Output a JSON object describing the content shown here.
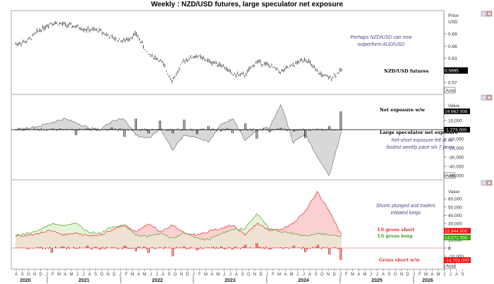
{
  "title": "Weekly : NZD/USD futures, large speculator net exposure",
  "panes": {
    "price": {
      "header": [
        "Price",
        "USD"
      ],
      "ticks": [
        {
          "label": "0.69",
          "v": 0.69
        },
        {
          "label": "0.66",
          "v": 0.66
        },
        {
          "label": "0.63",
          "v": 0.63
        },
        {
          "label": "0.57",
          "v": 0.57
        }
      ],
      "last_value": "0.5995",
      "series_label": "NZD/USD futures",
      "annotation": [
        "Perhaps NZD/USD can now",
        "outperform AUD/USD"
      ],
      "auto_label": "Auto"
    },
    "net": {
      "header": "Value",
      "ticks": [
        {
          "label": "10,000",
          "v": 10000
        },
        {
          "label": "-10,000",
          "v": -10000
        },
        {
          "label": "-20,000",
          "v": -20000
        },
        {
          "label": "-30,000",
          "v": -30000
        },
        {
          "label": "-40,000",
          "v": -40000
        },
        {
          "label": "-50,000",
          "v": -50000
        }
      ],
      "top_value": "19,962.000",
      "last_value": "-1,273.000",
      "series_labels": [
        "Net exposure w/w",
        "Large speculator net exposure"
      ],
      "annotation": [
        "Net-short exposure fell at its",
        "fastest weekly pace sin 7 years"
      ],
      "auto_label": "Auto"
    },
    "gross": {
      "header": "Value",
      "ticks": [
        {
          "label": "60,000",
          "v": 60000
        },
        {
          "label": "50,000",
          "v": 50000
        },
        {
          "label": "40,000",
          "v": 40000
        },
        {
          "label": "30,000",
          "v": 30000
        },
        {
          "label": "10,000",
          "v": 10000
        },
        {
          "label": "0",
          "v": 0
        },
        {
          "label": "-10,000",
          "v": -10000
        }
      ],
      "short_value": "15,844.000",
      "long_value": "14,571.000",
      "ww_value": "-14,703.000",
      "series_labels": [
        "LS gross short",
        "LS gross long",
        "Gross short w/w"
      ],
      "annotation": [
        "Shorts plunged and traders",
        "initiated longs"
      ],
      "auto_label": "Auto"
    }
  },
  "x_axis": {
    "months": [
      "A",
      "S",
      "O",
      "N",
      "D",
      "J",
      "F",
      "M",
      "A",
      "M",
      "J",
      "J",
      "A",
      "S",
      "O",
      "N",
      "D",
      "J",
      "F",
      "M",
      "A",
      "M",
      "J",
      "J",
      "A",
      "S",
      "O",
      "N",
      "D",
      "J",
      "F",
      "M",
      "A",
      "M",
      "J",
      "J",
      "A",
      "S",
      "O",
      "N",
      "D",
      "J",
      "F",
      "M",
      "A",
      "M",
      "J",
      "J",
      "A",
      "S",
      "O",
      "N",
      "D",
      "J",
      "F",
      "M",
      "A",
      "M",
      "J",
      "J",
      "A",
      "S",
      "O",
      "N",
      "D",
      "J",
      "F",
      "M",
      "A",
      "M",
      "J",
      "J",
      "A",
      "S"
    ],
    "years": [
      "2020",
      "2021",
      "2022",
      "2023",
      "2024",
      "2025",
      "2026"
    ]
  },
  "colors": {
    "price_bar": "#333333",
    "net_fill": "#d8d8d8",
    "net_line": "#777777",
    "short_line": "#e8474a",
    "short_fill": "#f9c4c4",
    "long_line": "#6aab3c",
    "long_fill": "#dff0cf",
    "common_fill": "#efe2d2",
    "ww_bar": "#cc0000",
    "tag_red": "#ff0000",
    "tag_green": "#33aa00",
    "note": "#4a4a8c"
  },
  "chart_data": [
    {
      "type": "line",
      "title": "NZD/USD futures (weekly OHLC)",
      "ylabel": "Price USD",
      "ylim": [
        0.55,
        0.72
      ],
      "x": [
        "2020-08",
        "2020-10",
        "2020-12",
        "2021-02",
        "2021-04",
        "2021-06",
        "2021-08",
        "2021-10",
        "2021-12",
        "2022-02",
        "2022-04",
        "2022-06",
        "2022-08",
        "2022-10",
        "2022-12",
        "2023-02",
        "2023-04",
        "2023-06",
        "2023-08",
        "2023-10",
        "2023-12",
        "2024-02",
        "2024-04",
        "2024-06",
        "2024-08",
        "2024-10",
        "2024-12",
        "2025-01"
      ],
      "series": [
        {
          "name": "NZD/USD futures",
          "values": [
            0.665,
            0.672,
            0.7,
            0.718,
            0.713,
            0.708,
            0.7,
            0.698,
            0.68,
            0.672,
            0.69,
            0.64,
            0.625,
            0.575,
            0.625,
            0.636,
            0.622,
            0.615,
            0.59,
            0.588,
            0.622,
            0.612,
            0.596,
            0.612,
            0.63,
            0.595,
            0.58,
            0.5995
          ]
        }
      ],
      "last_value": 0.5995
    },
    {
      "type": "area",
      "title": "Large speculator net exposure",
      "ylabel": "Value",
      "ylim": [
        -58000,
        25000
      ],
      "x": [
        "2020-08",
        "2020-10",
        "2020-12",
        "2021-02",
        "2021-04",
        "2021-06",
        "2021-08",
        "2021-10",
        "2021-12",
        "2022-02",
        "2022-04",
        "2022-06",
        "2022-08",
        "2022-10",
        "2022-12",
        "2023-02",
        "2023-04",
        "2023-06",
        "2023-08",
        "2023-10",
        "2023-12",
        "2024-02",
        "2024-04",
        "2024-06",
        "2024-08",
        "2024-10",
        "2024-12",
        "2025-01"
      ],
      "series": [
        {
          "name": "Large speculator net exposure",
          "values": [
            0,
            2000,
            4000,
            8000,
            12000,
            8000,
            2000,
            0,
            10000,
            12000,
            -6000,
            -10000,
            1000,
            -22000,
            -6000,
            -8000,
            -14000,
            6000,
            12000,
            -12000,
            0,
            2000,
            28000,
            -14000,
            -5000,
            -30000,
            -50000,
            -1273
          ]
        },
        {
          "name": "Net exposure w/w",
          "values": [
            500,
            800,
            -1000,
            1200,
            -600,
            -6000,
            1500,
            -400,
            2500,
            -8000,
            12000,
            -4000,
            10000,
            -4000,
            11000,
            -5000,
            4000,
            -2000,
            -4000,
            7000,
            -10000,
            -3000,
            2000,
            -2000,
            -9000,
            1000,
            4000,
            19962
          ]
        }
      ],
      "last_values": {
        "net": -1273,
        "ww": 19962
      }
    },
    {
      "type": "area",
      "title": "LS gross short / long",
      "ylabel": "Value",
      "ylim": [
        -15000,
        68000
      ],
      "x": [
        "2020-08",
        "2020-10",
        "2020-12",
        "2021-02",
        "2021-04",
        "2021-06",
        "2021-08",
        "2021-10",
        "2021-12",
        "2022-02",
        "2022-04",
        "2022-06",
        "2022-08",
        "2022-10",
        "2022-12",
        "2023-02",
        "2023-04",
        "2023-06",
        "2023-08",
        "2023-10",
        "2023-12",
        "2024-02",
        "2024-04",
        "2024-06",
        "2024-08",
        "2024-10",
        "2024-12",
        "2025-01"
      ],
      "series": [
        {
          "name": "LS gross short",
          "values": [
            14000,
            16000,
            18000,
            22000,
            16000,
            18000,
            15000,
            16000,
            22000,
            28000,
            20000,
            30000,
            20000,
            28000,
            18000,
            16000,
            20000,
            24000,
            28000,
            16000,
            30000,
            22000,
            22000,
            30000,
            45000,
            68000,
            45000,
            15844
          ]
        },
        {
          "name": "LS gross long",
          "values": [
            15000,
            18000,
            22000,
            30000,
            28000,
            30000,
            20000,
            18000,
            26000,
            28000,
            16000,
            14000,
            18000,
            12000,
            18000,
            12000,
            10000,
            18000,
            22000,
            24000,
            42000,
            24000,
            20000,
            18000,
            14000,
            18000,
            16000,
            14571
          ]
        },
        {
          "name": "Gross short w/w",
          "values": [
            500,
            -1500,
            1000,
            -6000,
            2000,
            -1000,
            3000,
            -2000,
            1000,
            3000,
            -4000,
            -6000,
            1000,
            -10000,
            2000,
            -3000,
            1000,
            2000,
            -2000,
            4000,
            6000,
            -2000,
            1000,
            3000,
            -5000,
            4000,
            -8000,
            -14703
          ]
        }
      ],
      "last_values": {
        "short": 15844,
        "long": 14571,
        "ww": -14703
      }
    }
  ]
}
